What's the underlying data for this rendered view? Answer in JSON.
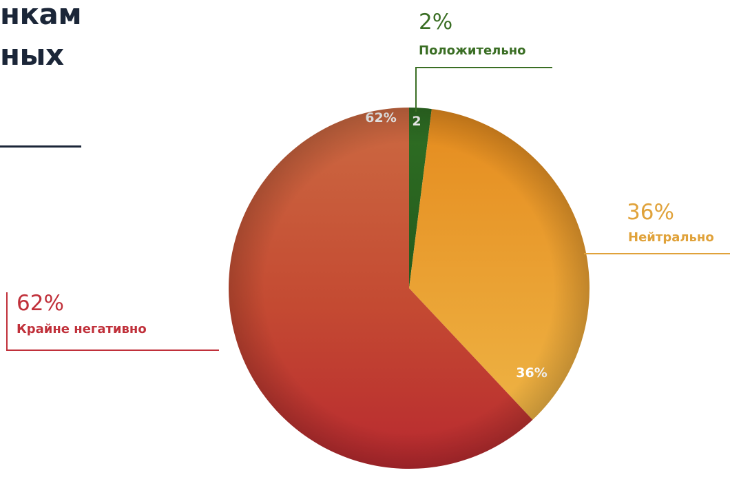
{
  "title": {
    "line1": "нкам",
    "line2": "ных"
  },
  "colors": {
    "positive": "#2e6b24",
    "neutral": "#e89a2a",
    "very_negative": "#c3432e",
    "title": "#1b2638"
  },
  "chart_data": {
    "type": "pie",
    "slices": [
      {
        "label": "Положительно",
        "value": 2,
        "callout_text": "2%",
        "inner_text": "2",
        "color": "#2e6b24",
        "callout_color": "#3a6e24"
      },
      {
        "label": "Нейтрально",
        "value": 36,
        "callout_text": "36%",
        "inner_text": "36%",
        "color": "#e89a2a",
        "callout_color": "#e0a23a"
      },
      {
        "label": "Крайне негативно",
        "value": 62,
        "callout_text": "62%",
        "inner_text": "62%",
        "color": "#c3432e",
        "callout_color": "#c0303a"
      }
    ]
  }
}
